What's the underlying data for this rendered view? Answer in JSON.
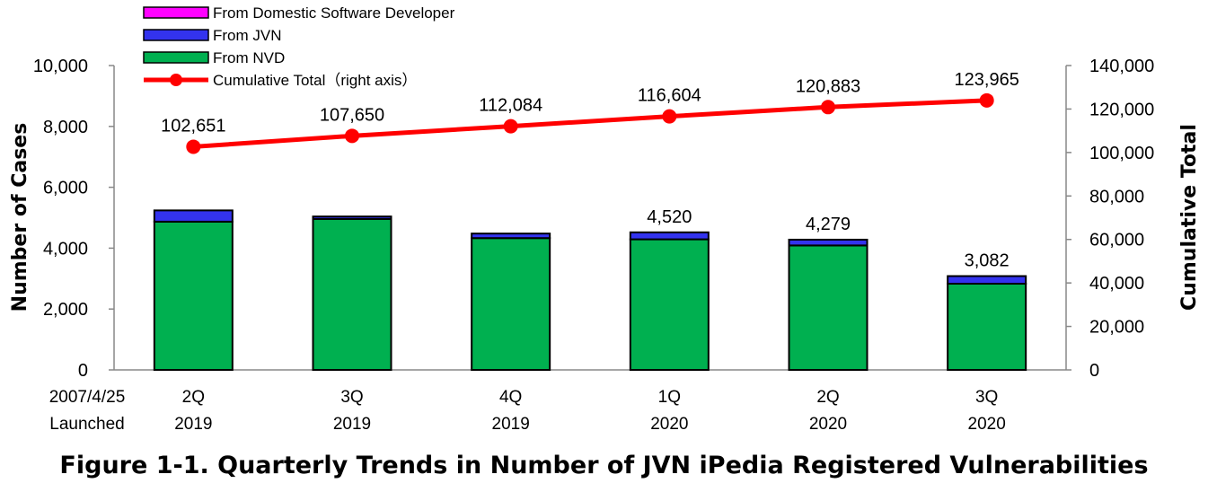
{
  "chart_data": {
    "type": "bar",
    "title": "Figure 1-1. Quarterly Trends in Number of JVN iPedia Registered Vulnerabilities",
    "ylabel": "Number of Cases",
    "y2label": "Cumulative Total",
    "ylim": [
      0,
      10000
    ],
    "y2lim": [
      0,
      140000
    ],
    "yticks": [
      "0",
      "2,000",
      "4,000",
      "6,000",
      "8,000",
      "10,000"
    ],
    "y2ticks": [
      "0",
      "20,000",
      "40,000",
      "60,000",
      "80,000",
      "100,000",
      "120,000",
      "140,000"
    ],
    "xprefix": [
      "2007/4/25",
      "Launched"
    ],
    "categories": [
      {
        "q": "2Q",
        "y": "2019"
      },
      {
        "q": "3Q",
        "y": "2019"
      },
      {
        "q": "4Q",
        "y": "2019"
      },
      {
        "q": "1Q",
        "y": "2020"
      },
      {
        "q": "2Q",
        "y": "2020"
      },
      {
        "q": "3Q",
        "y": "2020"
      }
    ],
    "legend_position": "top-left",
    "series": [
      {
        "name": "From Domestic Software Developer",
        "color": "#ff00ff",
        "values": [
          0,
          0,
          0,
          0,
          0,
          0
        ]
      },
      {
        "name": "From JVN",
        "color": "#3333ee",
        "values": [
          370,
          80,
          150,
          230,
          190,
          250
        ]
      },
      {
        "name": "From NVD",
        "color": "#00b050",
        "values": [
          4870,
          4960,
          4330,
          4290,
          4089,
          2832
        ]
      },
      {
        "name": "Cumulative Total（right axis）",
        "color": "#ff0000",
        "axis": "right",
        "type": "line",
        "values": [
          102651,
          107650,
          112084,
          116604,
          120883,
          123965
        ]
      }
    ],
    "bar_labels": [
      "",
      "",
      "",
      "4,520",
      "4,279",
      "3,082"
    ],
    "line_labels": [
      "102,651",
      "107,650",
      "112,084",
      "116,604",
      "120,883",
      "123,965"
    ]
  }
}
